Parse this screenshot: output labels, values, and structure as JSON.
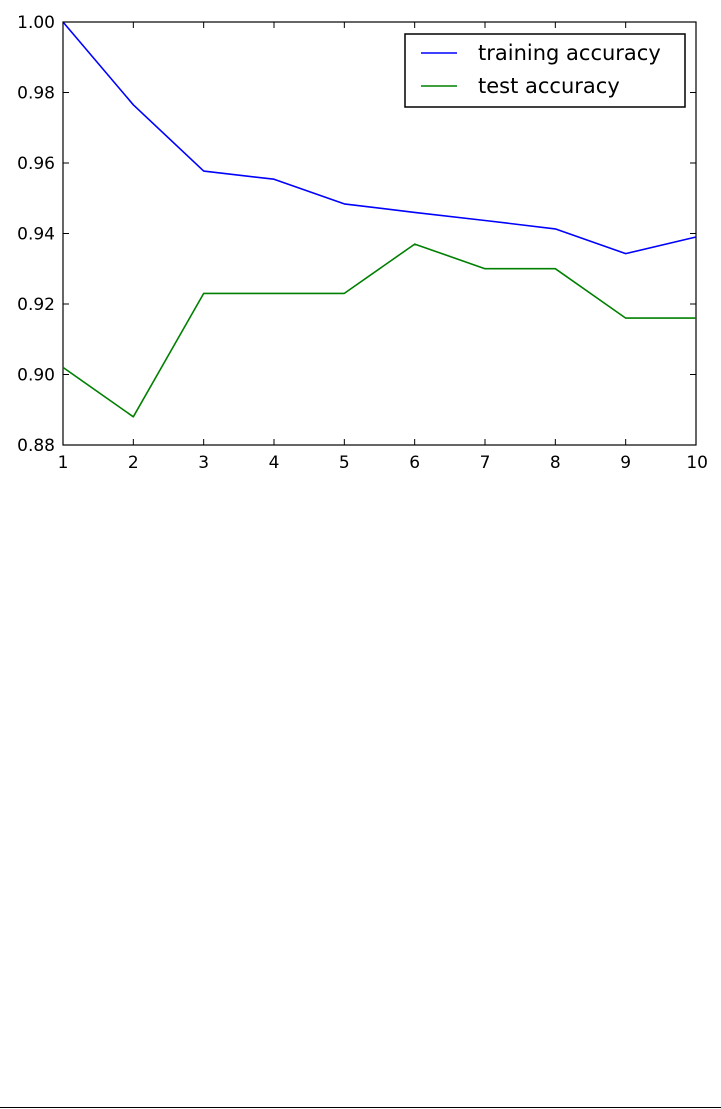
{
  "chart_data": {
    "type": "line",
    "x": [
      1,
      2,
      3,
      4,
      5,
      6,
      7,
      8,
      9,
      10
    ],
    "series": [
      {
        "name": "training accuracy",
        "color": "#0000ff",
        "values": [
          1.0,
          0.9765,
          0.9577,
          0.9554,
          0.9484,
          0.946,
          0.9437,
          0.9413,
          0.9343,
          0.939
        ]
      },
      {
        "name": "test accuracy",
        "color": "#008000",
        "values": [
          0.902,
          0.888,
          0.923,
          0.923,
          0.923,
          0.937,
          0.93,
          0.93,
          0.916,
          0.916
        ]
      }
    ],
    "xlim": [
      1,
      10
    ],
    "ylim": [
      0.88,
      1.0
    ],
    "x_ticks": [
      1,
      2,
      3,
      4,
      5,
      6,
      7,
      8,
      9,
      10
    ],
    "x_tick_labels": [
      "1",
      "2",
      "3",
      "4",
      "5",
      "6",
      "7",
      "8",
      "9",
      "10"
    ],
    "y_ticks": [
      0.88,
      0.9,
      0.92,
      0.94,
      0.96,
      0.98,
      1.0
    ],
    "y_tick_labels": [
      "0.88",
      "0.90",
      "0.92",
      "0.94",
      "0.96",
      "0.98",
      "1.00"
    ],
    "title": "",
    "xlabel": "",
    "ylabel": "",
    "grid": false,
    "legend_position": "top-right"
  }
}
